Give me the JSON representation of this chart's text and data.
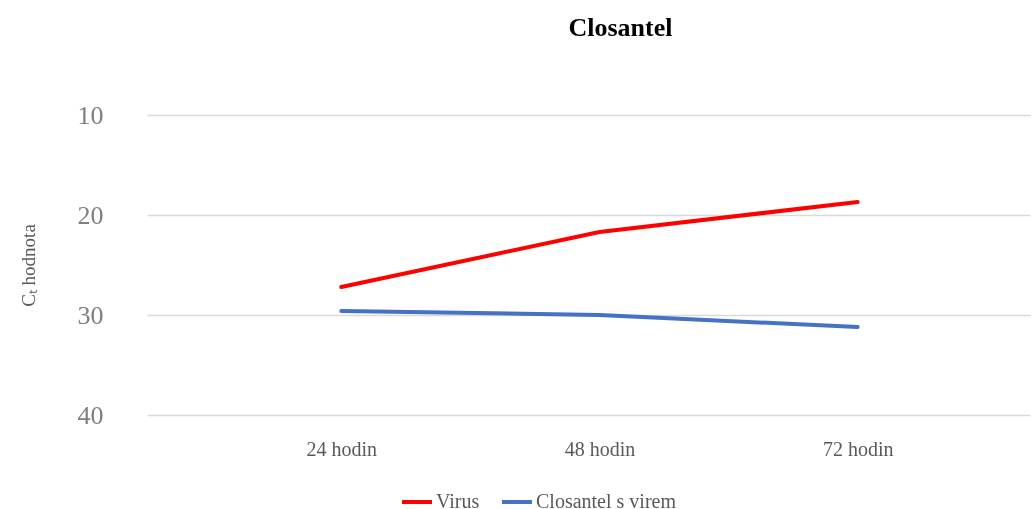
{
  "chart_data": {
    "type": "line",
    "title": "Closantel",
    "ylabel": "Cₜ hodnota",
    "categories": [
      "24 hodin",
      "48 hodin",
      "72 hodin"
    ],
    "series": [
      {
        "name": "Virus",
        "color": "#ff0000",
        "values": [
          27.2,
          21.7,
          18.7
        ]
      },
      {
        "name": "Closantel s virem",
        "color": "#4472c4",
        "values": [
          29.6,
          30.0,
          31.2
        ]
      }
    ],
    "ylim": [
      40,
      10
    ],
    "yticks": [
      10,
      20,
      30,
      40
    ],
    "grid": "y",
    "legend": "bottom",
    "marker": "none",
    "line_style": "solid"
  }
}
